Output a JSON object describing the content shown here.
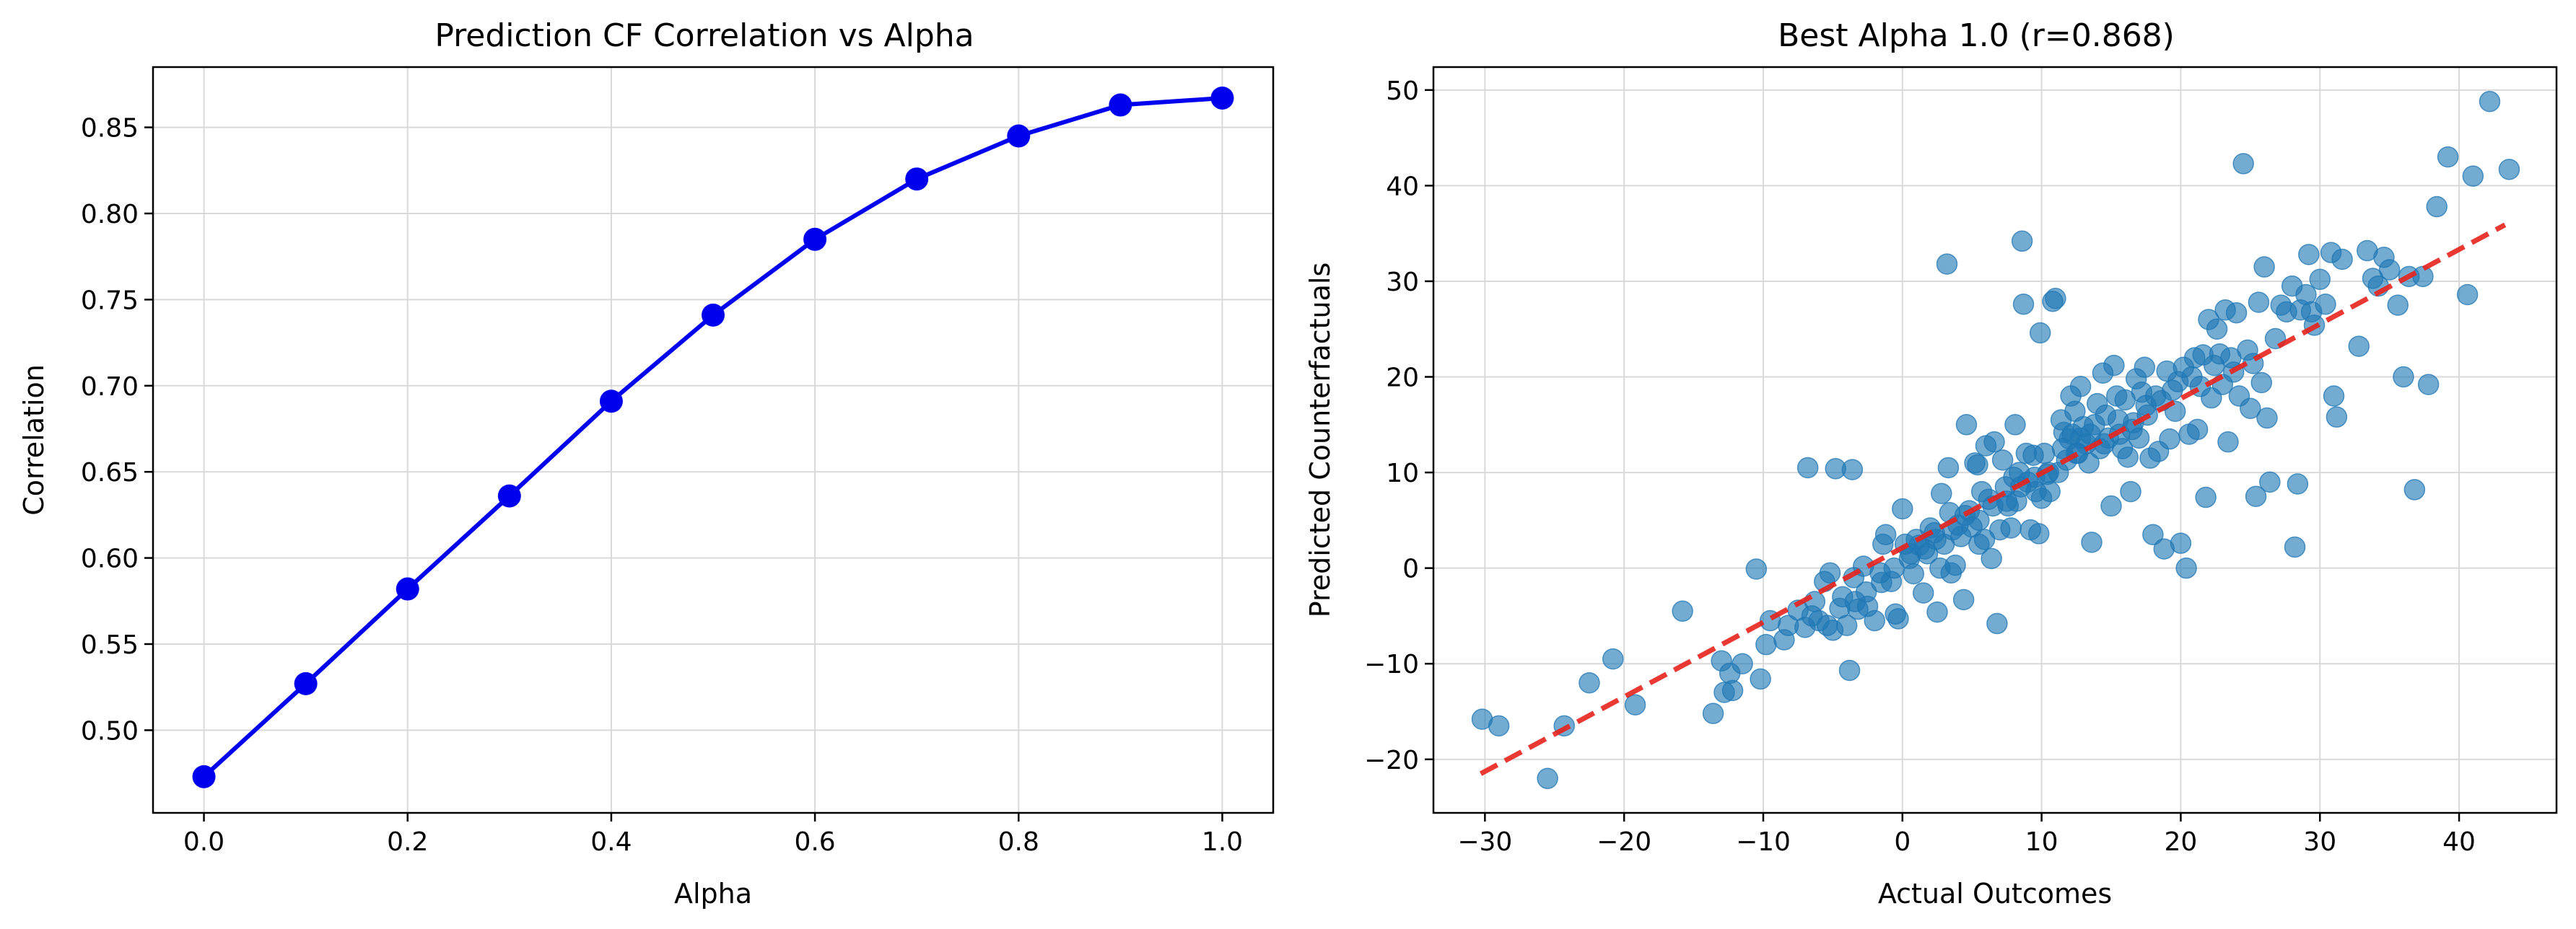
{
  "chart_data": [
    {
      "type": "line",
      "title": "Prediction CF Correlation vs Alpha",
      "xlabel": "Alpha",
      "ylabel": "Correlation",
      "xlim": [
        -0.05,
        1.05
      ],
      "ylim": [
        0.452,
        0.885
      ],
      "xticks": [
        0.0,
        0.2,
        0.4,
        0.6,
        0.8,
        1.0
      ],
      "xtick_labels": [
        "0.0",
        "0.2",
        "0.4",
        "0.6",
        "0.8",
        "1.0"
      ],
      "yticks": [
        0.5,
        0.55,
        0.6,
        0.65,
        0.7,
        0.75,
        0.8,
        0.85
      ],
      "ytick_labels": [
        "0.50",
        "0.55",
        "0.60",
        "0.65",
        "0.70",
        "0.75",
        "0.80",
        "0.85"
      ],
      "grid": true,
      "colors": {
        "line": "#0000ee",
        "marker": "#0000ee"
      },
      "x": [
        0.0,
        0.1,
        0.2,
        0.3,
        0.4,
        0.5,
        0.6,
        0.7,
        0.8,
        0.9,
        1.0
      ],
      "values": [
        0.473,
        0.527,
        0.582,
        0.636,
        0.691,
        0.741,
        0.785,
        0.82,
        0.845,
        0.863,
        0.867
      ]
    },
    {
      "type": "scatter",
      "title": "Best Alpha 1.0 (r=0.868)",
      "xlabel": "Actual Outcomes",
      "ylabel": "Predicted Counterfactuals",
      "xlim": [
        -33.7,
        47.0
      ],
      "ylim": [
        -25.6,
        52.4
      ],
      "xticks": [
        -30,
        -20,
        -10,
        0,
        10,
        20,
        30,
        40
      ],
      "xtick_labels": [
        "−30",
        "−20",
        "−10",
        "0",
        "10",
        "20",
        "30",
        "40"
      ],
      "yticks": [
        -20,
        -10,
        0,
        10,
        20,
        30,
        40,
        50
      ],
      "ytick_labels": [
        "−20",
        "−10",
        "0",
        "10",
        "20",
        "30",
        "40",
        "50"
      ],
      "grid": true,
      "colors": {
        "points": "#1f77b4",
        "fit": "#e8221c"
      },
      "fit_line": {
        "x": [
          -30.3,
          43.3
        ],
        "y": [
          -21.5,
          35.9
        ]
      },
      "points": [
        [
          -30.2,
          -15.8
        ],
        [
          -29.0,
          -16.5
        ],
        [
          -25.5,
          -22.0
        ],
        [
          -24.3,
          -16.5
        ],
        [
          -22.5,
          -12.0
        ],
        [
          -20.8,
          -9.5
        ],
        [
          -19.2,
          -14.3
        ],
        [
          -15.8,
          -4.5
        ],
        [
          -13.6,
          -15.2
        ],
        [
          -13.0,
          -9.7
        ],
        [
          -12.4,
          -11.0
        ],
        [
          -12.2,
          -12.8
        ],
        [
          -12.8,
          -13.0
        ],
        [
          -10.5,
          -0.1
        ],
        [
          -10.2,
          -11.6
        ],
        [
          -9.8,
          -8.0
        ],
        [
          -9.5,
          -5.5
        ],
        [
          -8.2,
          -6.0
        ],
        [
          -7.5,
          -4.4
        ],
        [
          -6.8,
          10.5
        ],
        [
          -6.5,
          -5.0
        ],
        [
          -6.3,
          -3.5
        ],
        [
          -6.0,
          -5.5
        ],
        [
          -5.6,
          -1.4
        ],
        [
          -5.2,
          -0.5
        ],
        [
          -5.0,
          -6.5
        ],
        [
          -4.8,
          10.4
        ],
        [
          -4.5,
          -4.2
        ],
        [
          -4.3,
          -3.0
        ],
        [
          -4.0,
          -6.0
        ],
        [
          -3.6,
          10.3
        ],
        [
          -3.8,
          -10.7
        ],
        [
          -3.5,
          -1.0
        ],
        [
          -3.2,
          -4.3
        ],
        [
          -2.8,
          0.2
        ],
        [
          -2.5,
          -4.0
        ],
        [
          -2.0,
          -5.5
        ],
        [
          -1.5,
          -1.5
        ],
        [
          -1.4,
          2.5
        ],
        [
          -1.2,
          3.5
        ],
        [
          -0.8,
          -1.4
        ],
        [
          -0.5,
          -4.8
        ],
        [
          -0.3,
          -5.3
        ],
        [
          0.0,
          6.2
        ],
        [
          0.2,
          2.5
        ],
        [
          0.5,
          1.0
        ],
        [
          0.8,
          -0.6
        ],
        [
          1.0,
          3.0
        ],
        [
          1.2,
          2.4
        ],
        [
          1.5,
          -2.6
        ],
        [
          1.8,
          1.5
        ],
        [
          2.0,
          4.2
        ],
        [
          2.3,
          3.7
        ],
        [
          2.5,
          -4.6
        ],
        [
          2.7,
          0.0
        ],
        [
          2.8,
          7.8
        ],
        [
          3.0,
          2.5
        ],
        [
          3.2,
          31.8
        ],
        [
          3.3,
          10.5
        ],
        [
          3.4,
          5.8
        ],
        [
          3.5,
          -0.5
        ],
        [
          3.8,
          0.3
        ],
        [
          4.0,
          4.5
        ],
        [
          4.2,
          3.3
        ],
        [
          4.4,
          -3.3
        ],
        [
          4.6,
          15.0
        ],
        [
          4.8,
          6.0
        ],
        [
          5.0,
          4.3
        ],
        [
          5.2,
          11.0
        ],
        [
          5.4,
          10.8
        ],
        [
          5.5,
          2.5
        ],
        [
          5.7,
          8.0
        ],
        [
          5.9,
          3.0
        ],
        [
          6.0,
          12.8
        ],
        [
          6.2,
          7.2
        ],
        [
          6.4,
          1.0
        ],
        [
          6.6,
          13.2
        ],
        [
          6.8,
          -5.8
        ],
        [
          7.0,
          4.0
        ],
        [
          7.2,
          11.3
        ],
        [
          7.4,
          8.5
        ],
        [
          7.6,
          6.5
        ],
        [
          7.8,
          4.2
        ],
        [
          8.0,
          9.5
        ],
        [
          8.1,
          15.0
        ],
        [
          8.2,
          7.0
        ],
        [
          8.4,
          10.0
        ],
        [
          8.6,
          34.2
        ],
        [
          8.7,
          27.6
        ],
        [
          8.9,
          12.0
        ],
        [
          9.0,
          9.0
        ],
        [
          9.2,
          4.0
        ],
        [
          9.4,
          11.8
        ],
        [
          9.6,
          8.0
        ],
        [
          9.8,
          3.6
        ],
        [
          9.9,
          24.6
        ],
        [
          10.0,
          7.3
        ],
        [
          10.2,
          12.0
        ],
        [
          10.4,
          9.8
        ],
        [
          10.6,
          8.0
        ],
        [
          10.8,
          27.9
        ],
        [
          11.0,
          28.2
        ],
        [
          11.2,
          10.0
        ],
        [
          11.4,
          15.5
        ],
        [
          11.6,
          14.2
        ],
        [
          11.8,
          11.3
        ],
        [
          12.0,
          13.5
        ],
        [
          12.1,
          18.0
        ],
        [
          12.2,
          14.0
        ],
        [
          12.4,
          16.4
        ],
        [
          12.6,
          12.0
        ],
        [
          12.8,
          19.0
        ],
        [
          13.0,
          14.8
        ],
        [
          13.2,
          13.0
        ],
        [
          13.4,
          11.0
        ],
        [
          13.6,
          2.7
        ],
        [
          13.8,
          15.0
        ],
        [
          14.0,
          17.2
        ],
        [
          14.2,
          12.5
        ],
        [
          14.4,
          20.4
        ],
        [
          14.6,
          16.0
        ],
        [
          14.8,
          13.6
        ],
        [
          15.0,
          6.5
        ],
        [
          15.2,
          21.2
        ],
        [
          15.4,
          18.0
        ],
        [
          15.6,
          14.0
        ],
        [
          15.8,
          12.5
        ],
        [
          16.0,
          17.6
        ],
        [
          16.2,
          11.6
        ],
        [
          16.4,
          8.0
        ],
        [
          16.6,
          15.2
        ],
        [
          16.8,
          19.8
        ],
        [
          17.0,
          13.6
        ],
        [
          17.2,
          18.4
        ],
        [
          17.4,
          21.0
        ],
        [
          17.6,
          16.0
        ],
        [
          17.8,
          11.5
        ],
        [
          18.0,
          3.5
        ],
        [
          18.2,
          18.0
        ],
        [
          18.4,
          12.2
        ],
        [
          18.6,
          17.5
        ],
        [
          18.8,
          2.0
        ],
        [
          19.0,
          20.6
        ],
        [
          19.2,
          13.5
        ],
        [
          19.4,
          18.6
        ],
        [
          19.6,
          16.4
        ],
        [
          19.8,
          19.5
        ],
        [
          20.0,
          2.6
        ],
        [
          20.2,
          21.0
        ],
        [
          20.4,
          0.0
        ],
        [
          20.6,
          14.0
        ],
        [
          20.8,
          20.0
        ],
        [
          21.0,
          22.0
        ],
        [
          21.2,
          14.5
        ],
        [
          21.4,
          19.0
        ],
        [
          21.6,
          22.3
        ],
        [
          21.8,
          7.4
        ],
        [
          22.0,
          26.0
        ],
        [
          22.2,
          17.8
        ],
        [
          22.4,
          21.2
        ],
        [
          22.6,
          25.0
        ],
        [
          22.8,
          22.4
        ],
        [
          23.0,
          19.2
        ],
        [
          23.2,
          27.0
        ],
        [
          23.4,
          13.2
        ],
        [
          23.6,
          22.0
        ],
        [
          23.8,
          20.5
        ],
        [
          24.0,
          26.7
        ],
        [
          24.2,
          18.0
        ],
        [
          24.5,
          42.3
        ],
        [
          24.8,
          22.8
        ],
        [
          25.0,
          16.7
        ],
        [
          25.2,
          21.4
        ],
        [
          25.4,
          7.5
        ],
        [
          25.6,
          27.8
        ],
        [
          25.8,
          19.4
        ],
        [
          26.0,
          31.5
        ],
        [
          26.2,
          15.7
        ],
        [
          26.4,
          9.0
        ],
        [
          26.8,
          24.0
        ],
        [
          27.2,
          27.5
        ],
        [
          27.6,
          26.8
        ],
        [
          28.0,
          29.5
        ],
        [
          28.2,
          2.2
        ],
        [
          28.4,
          8.8
        ],
        [
          28.6,
          27.0
        ],
        [
          29.0,
          28.6
        ],
        [
          29.2,
          32.8
        ],
        [
          29.4,
          26.8
        ],
        [
          29.6,
          25.4
        ],
        [
          30.0,
          30.2
        ],
        [
          30.4,
          27.6
        ],
        [
          30.8,
          33.0
        ],
        [
          31.0,
          18.0
        ],
        [
          31.2,
          15.8
        ],
        [
          31.6,
          32.3
        ],
        [
          32.8,
          23.2
        ],
        [
          33.4,
          33.2
        ],
        [
          33.8,
          30.3
        ],
        [
          34.2,
          29.5
        ],
        [
          34.6,
          32.5
        ],
        [
          35.0,
          31.2
        ],
        [
          35.6,
          27.5
        ],
        [
          36.0,
          20.0
        ],
        [
          36.4,
          30.5
        ],
        [
          36.8,
          8.2
        ],
        [
          37.4,
          30.5
        ],
        [
          37.8,
          19.2
        ],
        [
          38.4,
          37.8
        ],
        [
          39.2,
          43.0
        ],
        [
          40.6,
          28.6
        ],
        [
          41.0,
          41.0
        ],
        [
          42.2,
          48.8
        ],
        [
          43.6,
          41.7
        ],
        [
          12.5,
          12.0
        ],
        [
          13.5,
          14.0
        ],
        [
          14.5,
          13.0
        ],
        [
          15.5,
          15.5
        ],
        [
          16.5,
          14.5
        ],
        [
          17.5,
          17.0
        ],
        [
          11.5,
          12.5
        ],
        [
          12.8,
          13.6
        ],
        [
          10.5,
          10.0
        ],
        [
          9.5,
          9.5
        ],
        [
          8.5,
          8.5
        ],
        [
          7.5,
          7.0
        ],
        [
          6.5,
          6.5
        ],
        [
          5.5,
          5.0
        ],
        [
          4.5,
          5.5
        ],
        [
          3.6,
          4.0
        ],
        [
          2.4,
          3.0
        ],
        [
          1.6,
          2.0
        ],
        [
          0.6,
          1.5
        ],
        [
          -0.6,
          0.0
        ],
        [
          -1.6,
          -0.5
        ],
        [
          -2.6,
          -2.5
        ],
        [
          -3.4,
          -3.5
        ],
        [
          -5.4,
          -6.0
        ],
        [
          -7.0,
          -6.2
        ],
        [
          -8.5,
          -7.5
        ],
        [
          -11.5,
          -10.0
        ]
      ]
    }
  ]
}
